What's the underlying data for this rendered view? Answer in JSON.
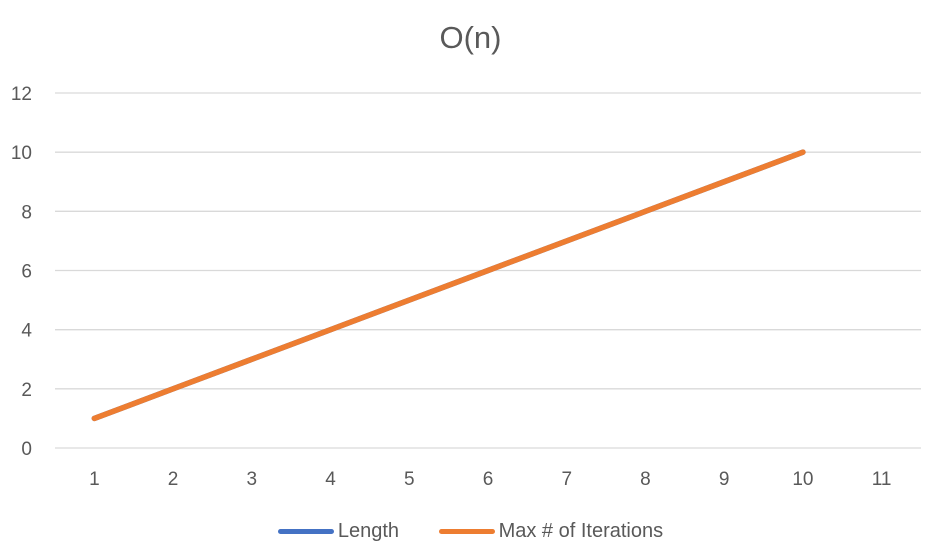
{
  "chart_data": {
    "type": "line",
    "title": "O(n)",
    "xlabel": "",
    "ylabel": "",
    "categories": [
      "1",
      "2",
      "3",
      "4",
      "5",
      "6",
      "7",
      "8",
      "9",
      "10",
      "11"
    ],
    "series": [
      {
        "name": "Length",
        "color": "#4472C4",
        "values": [
          1,
          2,
          3,
          4,
          5,
          6,
          7,
          8,
          9,
          10,
          null
        ]
      },
      {
        "name": "Max # of Iterations",
        "color": "#ED7D31",
        "values": [
          1,
          2,
          3,
          4,
          5,
          6,
          7,
          8,
          9,
          10,
          null
        ]
      }
    ],
    "ylim": [
      0,
      12
    ],
    "yticks": [
      "0",
      "2",
      "4",
      "6",
      "8",
      "10",
      "12"
    ],
    "grid": true,
    "legend_position": "bottom"
  }
}
